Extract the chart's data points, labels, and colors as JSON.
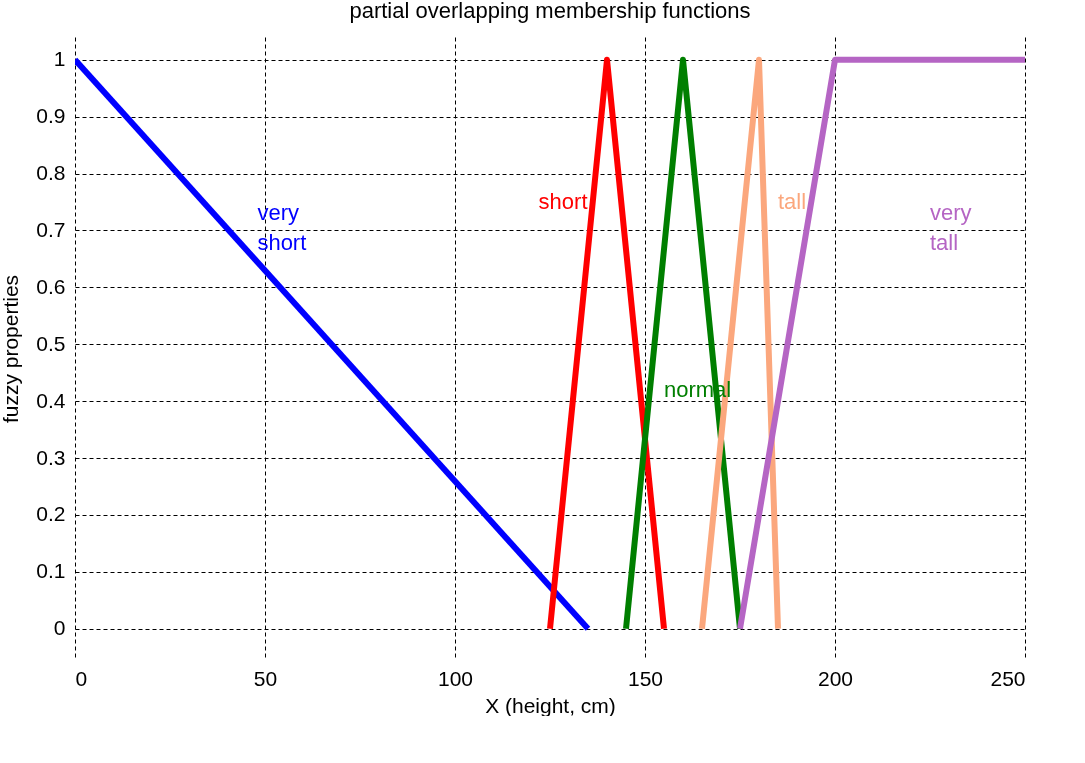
{
  "chart_data": {
    "type": "line",
    "title": "partial overlapping membership functions",
    "xlabel": "X (height, cm)",
    "ylabel": "fuzzy properties",
    "series": [
      {
        "name": "very short",
        "color": "#0000ff",
        "x": [
          0,
          135
        ],
        "values": [
          1,
          0
        ]
      },
      {
        "name": "short",
        "color": "#ff0000",
        "x": [
          125,
          140,
          155
        ],
        "values": [
          0,
          1,
          0
        ]
      },
      {
        "name": "normal",
        "color": "#007f00",
        "x": [
          145,
          160,
          175
        ],
        "values": [
          0,
          1,
          0
        ]
      },
      {
        "name": "tall",
        "color": "#fba77d",
        "x": [
          165,
          180,
          185
        ],
        "values": [
          0,
          1,
          0
        ]
      },
      {
        "name": "very tall",
        "color": "#b565c4",
        "x": [
          175,
          200,
          250
        ],
        "values": [
          0,
          1,
          1
        ]
      }
    ],
    "xlim": [
      0,
      250
    ],
    "xticks": [
      0,
      50,
      100,
      150,
      200,
      250
    ],
    "ylim": [
      -0.055,
      1.04
    ],
    "yticks": [
      0,
      0.1,
      0.2,
      0.3,
      0.4,
      0.5,
      0.6,
      0.7,
      0.8,
      0.9,
      1
    ],
    "grid": true,
    "marker": "none",
    "line_style": "solid"
  }
}
